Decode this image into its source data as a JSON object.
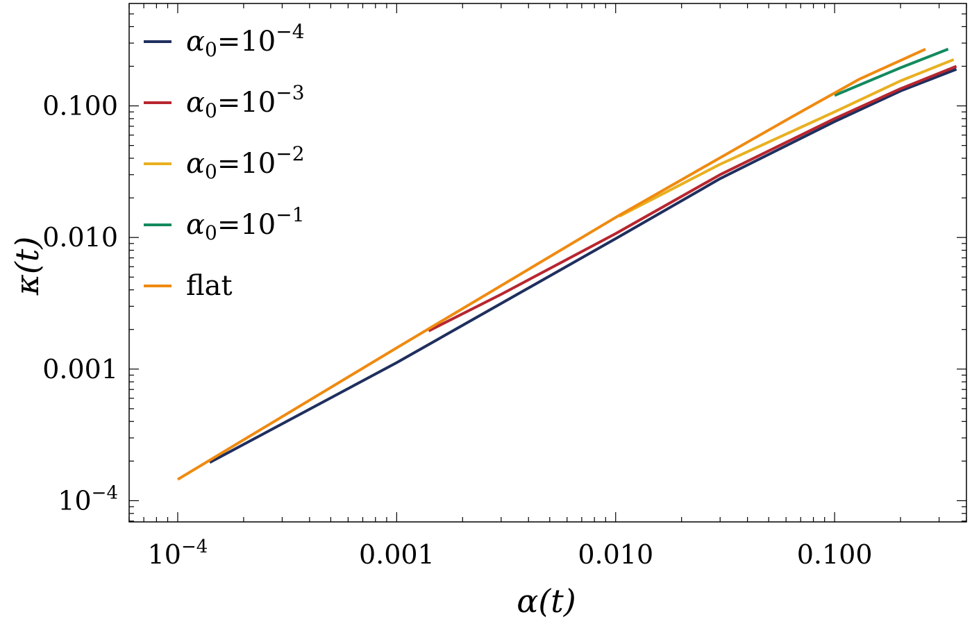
{
  "chart_data": {
    "type": "line",
    "xlabel": "α(t)",
    "ylabel": "κ(t)",
    "x_scale": "log",
    "y_scale": "log",
    "xlim": [
      6e-05,
      0.4
    ],
    "ylim": [
      6.9e-05,
      0.6
    ],
    "grid": false,
    "legend_position": "top-left",
    "x_ticks": [
      {
        "value": 0.0001,
        "label": "10",
        "exp": "−4"
      },
      {
        "value": 0.001,
        "label": "0.001",
        "exp": ""
      },
      {
        "value": 0.01,
        "label": "0.010",
        "exp": ""
      },
      {
        "value": 0.1,
        "label": "0.100",
        "exp": ""
      }
    ],
    "y_ticks": [
      {
        "value": 0.0001,
        "label": "10",
        "exp": "−4"
      },
      {
        "value": 0.001,
        "label": "0.001",
        "exp": ""
      },
      {
        "value": 0.01,
        "label": "0.010",
        "exp": ""
      },
      {
        "value": 0.1,
        "label": "0.100",
        "exp": ""
      }
    ],
    "series": [
      {
        "name": "α₀=10⁻⁴",
        "legend_base": "α",
        "legend_sub": "0",
        "legend_mid": "=10",
        "legend_exp": "−4",
        "color": "#1f2f5e",
        "x": [
          0.00014,
          0.001,
          0.01,
          0.03,
          0.1,
          0.2,
          0.36
        ],
        "y": [
          0.000195,
          0.00112,
          0.0098,
          0.028,
          0.076,
          0.13,
          0.19
        ]
      },
      {
        "name": "α₀=10⁻³",
        "legend_base": "α",
        "legend_sub": "0",
        "legend_mid": "=10",
        "legend_exp": "−3",
        "color": "#b8262f",
        "x": [
          0.0014,
          0.003,
          0.01,
          0.03,
          0.1,
          0.2,
          0.36
        ],
        "y": [
          0.00195,
          0.0037,
          0.0107,
          0.03,
          0.08,
          0.135,
          0.2
        ]
      },
      {
        "name": "α₀=10⁻²",
        "legend_base": "α",
        "legend_sub": "0",
        "legend_mid": "=10",
        "legend_exp": "−2",
        "color": "#e9b020",
        "x": [
          0.0104,
          0.03,
          0.1,
          0.2,
          0.35
        ],
        "y": [
          0.0145,
          0.036,
          0.09,
          0.155,
          0.225
        ]
      },
      {
        "name": "α₀=10⁻¹",
        "legend_base": "α",
        "legend_sub": "0",
        "legend_mid": "=10",
        "legend_exp": "−1",
        "color": "#148a5e",
        "x": [
          0.1,
          0.2,
          0.33
        ],
        "y": [
          0.12,
          0.195,
          0.27
        ]
      },
      {
        "name": "flat",
        "legend_base": "flat",
        "legend_sub": "",
        "legend_mid": "",
        "legend_exp": "",
        "color": "#ef8a10",
        "x": [
          0.0001,
          0.001,
          0.01,
          0.04,
          0.07,
          0.13,
          0.26
        ],
        "y": [
          0.000145,
          0.00145,
          0.0142,
          0.053,
          0.09,
          0.16,
          0.27
        ]
      }
    ]
  }
}
